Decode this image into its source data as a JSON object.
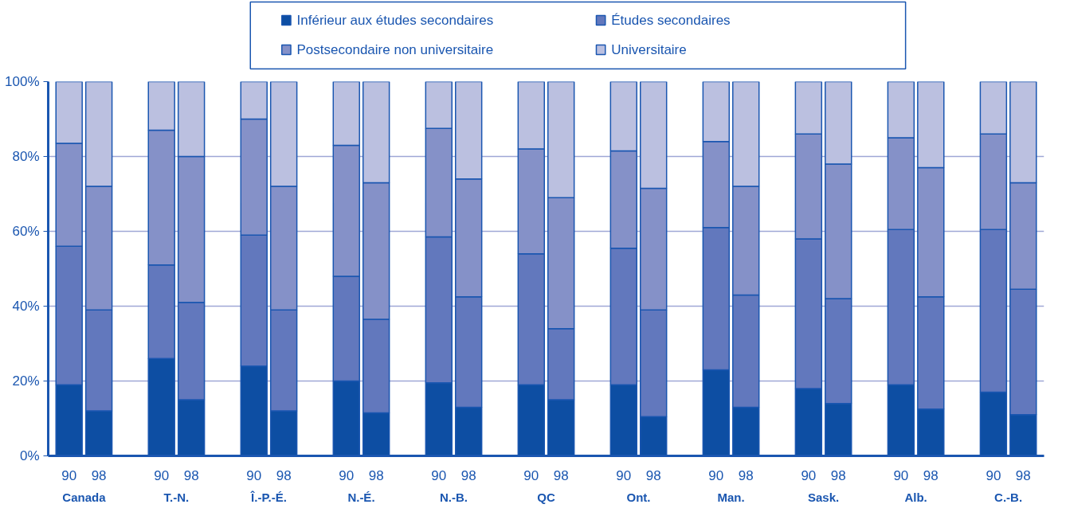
{
  "chart_data": {
    "type": "bar",
    "stacked": true,
    "categories": [
      "90",
      "98",
      "90",
      "98",
      "90",
      "98",
      "90",
      "98",
      "90",
      "98",
      "90",
      "98",
      "90",
      "98",
      "90",
      "98",
      "90",
      "98",
      "90",
      "98",
      "90",
      "98"
    ],
    "annotations": [
      "Canada",
      "T.-N.",
      "Î.-P.-É.",
      "N.-É.",
      "N.-B.",
      "QC",
      "Ont.",
      "Man.",
      "Sask.",
      "Alb.",
      "C.-B."
    ],
    "series": [
      {
        "name": "Inférieur aux études secondaires",
        "color": "#0d4ea3",
        "values": [
          19,
          12,
          26,
          15,
          24,
          12,
          20,
          11.5,
          19.5,
          13,
          19,
          15,
          19,
          10.5,
          23,
          13,
          18,
          14,
          19,
          12.5,
          17,
          11
        ]
      },
      {
        "name": "Études secondaires",
        "color": "#6278bd",
        "values": [
          37,
          27,
          25,
          26,
          35,
          27,
          28,
          25,
          39,
          29.5,
          35,
          19,
          36.5,
          28.5,
          38,
          30,
          40,
          28,
          41.5,
          30,
          43.5,
          33.5
        ]
      },
      {
        "name": "Postsecondaire non universitaire",
        "color": "#8591c8",
        "values": [
          27.5,
          33,
          36,
          39,
          31,
          33,
          35,
          36.5,
          29,
          31.5,
          28,
          35,
          26,
          32.5,
          23,
          29,
          28,
          36,
          24.5,
          34.5,
          25.5,
          28.5
        ]
      },
      {
        "name": "Universitaire",
        "color": "#bbc0e0",
        "values": [
          16.5,
          28,
          13,
          20,
          10,
          28,
          17,
          27,
          12.5,
          26,
          18,
          31,
          18.5,
          28.5,
          16,
          28,
          14,
          22,
          15,
          23,
          14,
          27
        ]
      }
    ],
    "ylim": [
      0,
      100
    ],
    "yticks": [
      {
        "value": 0,
        "label": "0%"
      },
      {
        "value": 20,
        "label": "20%"
      },
      {
        "value": 40,
        "label": "40%"
      },
      {
        "value": 60,
        "label": "60%"
      },
      {
        "value": 80,
        "label": "80%"
      },
      {
        "value": 100,
        "label": "100%"
      }
    ],
    "grid": "y",
    "legend": "top"
  }
}
